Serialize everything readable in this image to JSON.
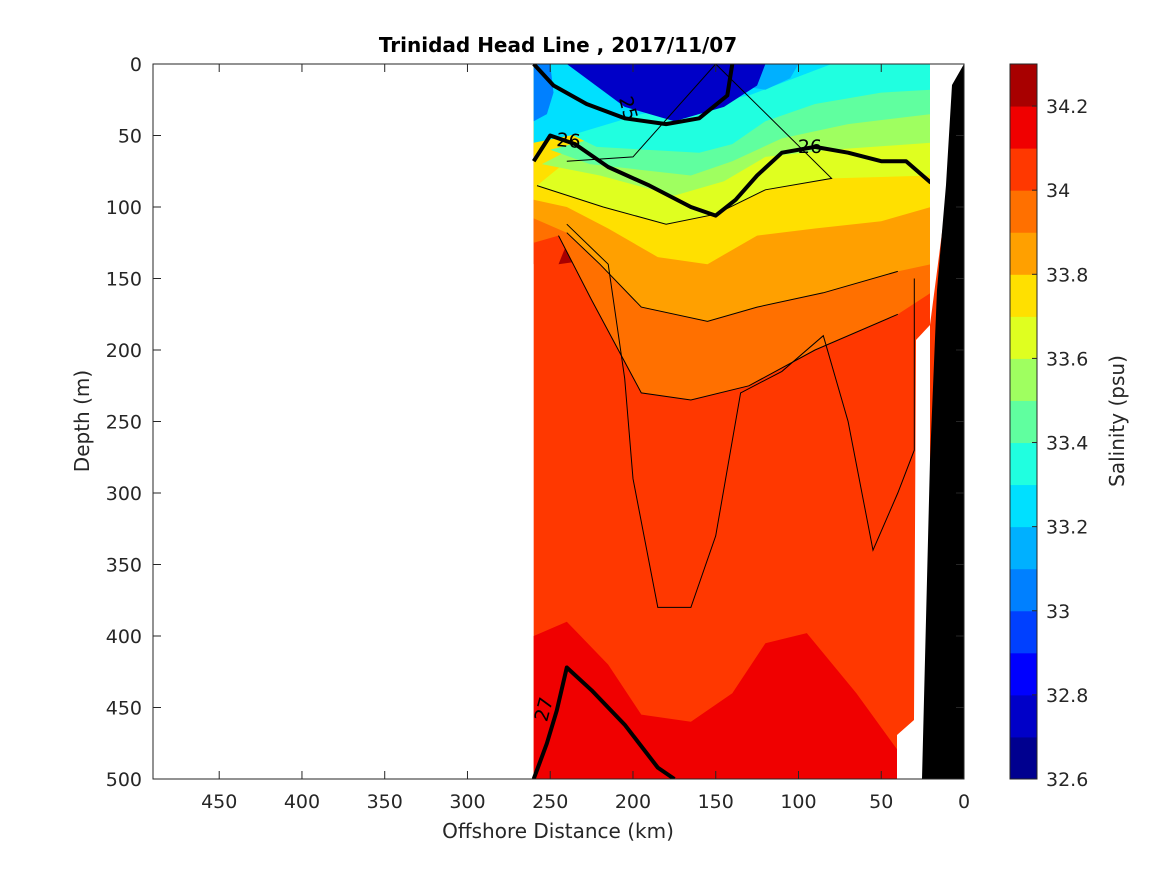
{
  "chart_data": {
    "type": "heatmap",
    "title": "Trinidad Head Line , 2017/11/07",
    "xlabel": "Offshore Distance (km)",
    "ylabel": "Depth (m)",
    "xlim": [
      490,
      0
    ],
    "ylim": [
      500,
      0
    ],
    "x_reversed": true,
    "y_reversed": true,
    "xticks": [
      "450",
      "400",
      "350",
      "300",
      "250",
      "200",
      "150",
      "100",
      "50",
      "0"
    ],
    "xtick_values": [
      450,
      400,
      350,
      300,
      250,
      200,
      150,
      100,
      50,
      0
    ],
    "yticks": [
      "0",
      "50",
      "100",
      "150",
      "200",
      "250",
      "300",
      "350",
      "400",
      "450",
      "500"
    ],
    "ytick_values": [
      0,
      50,
      100,
      150,
      200,
      250,
      300,
      350,
      400,
      450,
      500
    ],
    "data_extent_km": [
      0,
      260
    ],
    "colorbar": {
      "label": "Salinity (psu)",
      "range": [
        32.6,
        34.3
      ],
      "ticks": [
        "32.6",
        "32.8",
        "33",
        "33.2",
        "33.4",
        "33.6",
        "33.8",
        "34",
        "34.2"
      ],
      "tick_values": [
        32.6,
        32.8,
        33.0,
        33.2,
        33.4,
        33.6,
        33.8,
        34.0,
        34.2
      ],
      "levels": [
        32.6,
        32.7,
        32.8,
        32.9,
        33.0,
        33.1,
        33.2,
        33.3,
        33.4,
        33.5,
        33.6,
        33.7,
        33.8,
        33.9,
        34.0,
        34.1,
        34.2,
        34.3
      ],
      "colors": [
        "#00008f",
        "#0000c8",
        "#0000ff",
        "#0040ff",
        "#0080ff",
        "#00b0ff",
        "#00e0ff",
        "#20ffe0",
        "#60ff9f",
        "#9fff60",
        "#dfff20",
        "#ffe000",
        "#ffa000",
        "#ff7000",
        "#ff3800",
        "#f00000",
        "#a80000"
      ]
    },
    "salinity_bands": [
      {
        "level": 32.7,
        "points": [
          [
            240,
            0
          ],
          [
            120,
            0
          ],
          [
            125,
            15
          ],
          [
            145,
            30
          ],
          [
            175,
            40
          ],
          [
            205,
            30
          ]
        ]
      },
      {
        "level": 32.9,
        "points": [
          [
            230,
            0
          ],
          [
            132,
            0
          ],
          [
            140,
            20
          ],
          [
            170,
            32
          ],
          [
            195,
            20
          ]
        ]
      },
      {
        "level": 33.0,
        "points": [
          [
            260,
            0
          ],
          [
            250,
            0
          ],
          [
            248,
            20
          ],
          [
            252,
            35
          ],
          [
            260,
            40
          ]
        ]
      },
      {
        "level": 33.1,
        "points": [
          [
            225,
            0
          ],
          [
            100,
            0
          ],
          [
            105,
            10
          ],
          [
            120,
            18
          ]
        ]
      },
      {
        "level": 33.2,
        "points": [
          [
            260,
            0
          ],
          [
            80,
            0
          ],
          [
            130,
            22
          ],
          [
            195,
            35
          ],
          [
            238,
            50
          ],
          [
            260,
            55
          ]
        ]
      },
      {
        "level": 33.3,
        "points": [
          [
            245,
            45
          ],
          [
            222,
            58
          ],
          [
            160,
            62
          ],
          [
            140,
            56
          ],
          [
            120,
            40
          ],
          [
            90,
            28
          ],
          [
            50,
            20
          ],
          [
            20,
            18
          ],
          [
            20,
            0
          ],
          [
            200,
            0
          ],
          [
            220,
            18
          ]
        ]
      },
      {
        "level": 33.4,
        "points": [
          [
            250,
            60
          ],
          [
            226,
            70
          ],
          [
            165,
            78
          ],
          [
            140,
            68
          ],
          [
            110,
            52
          ],
          [
            70,
            42
          ],
          [
            20,
            35
          ],
          [
            20,
            0
          ],
          [
            90,
            0
          ],
          [
            150,
            30
          ],
          [
            200,
            45
          ]
        ]
      },
      {
        "level": 33.5,
        "points": [
          [
            255,
            70
          ],
          [
            220,
            78
          ],
          [
            175,
            92
          ],
          [
            145,
            82
          ],
          [
            120,
            65
          ],
          [
            80,
            60
          ],
          [
            20,
            55
          ],
          [
            20,
            0
          ],
          [
            120,
            0
          ],
          [
            180,
            50
          ],
          [
            230,
            55
          ]
        ]
      },
      {
        "level": 33.6,
        "points": [
          [
            258,
            85
          ],
          [
            218,
            100
          ],
          [
            180,
            112
          ],
          [
            150,
            105
          ],
          [
            120,
            88
          ],
          [
            80,
            80
          ],
          [
            20,
            78
          ],
          [
            20,
            0
          ],
          [
            150,
            0
          ],
          [
            200,
            65
          ],
          [
            240,
            68
          ]
        ]
      },
      {
        "level": 33.7,
        "points": [
          [
            260,
            95
          ],
          [
            240,
            100
          ],
          [
            215,
            115
          ],
          [
            185,
            135
          ],
          [
            155,
            140
          ],
          [
            125,
            120
          ],
          [
            90,
            115
          ],
          [
            50,
            110
          ],
          [
            20,
            100
          ],
          [
            20,
            0
          ],
          [
            260,
            0
          ]
        ]
      },
      {
        "level": 33.8,
        "points": [
          [
            260,
            108
          ],
          [
            240,
            118
          ],
          [
            220,
            140
          ],
          [
            195,
            170
          ],
          [
            155,
            180
          ],
          [
            125,
            170
          ],
          [
            85,
            160
          ],
          [
            40,
            145
          ],
          [
            20,
            140
          ],
          [
            20,
            0
          ],
          [
            260,
            0
          ]
        ]
      },
      {
        "level": 33.9,
        "points": [
          [
            260,
            125
          ],
          [
            245,
            120
          ],
          [
            225,
            165
          ],
          [
            195,
            230
          ],
          [
            165,
            235
          ],
          [
            130,
            225
          ],
          [
            90,
            200
          ],
          [
            40,
            175
          ],
          [
            20,
            160
          ],
          [
            20,
            0
          ],
          [
            260,
            0
          ]
        ]
      },
      {
        "level": 34.0,
        "points": [
          [
            260,
            140
          ],
          [
            240,
            112
          ],
          [
            215,
            140
          ],
          [
            205,
            220
          ],
          [
            200,
            290
          ],
          [
            185,
            380
          ],
          [
            165,
            380
          ],
          [
            150,
            330
          ],
          [
            135,
            230
          ],
          [
            110,
            215
          ],
          [
            85,
            190
          ],
          [
            70,
            250
          ],
          [
            55,
            340
          ],
          [
            40,
            300
          ],
          [
            30,
            270
          ],
          [
            30,
            150
          ],
          [
            20,
            130
          ],
          [
            20,
            0
          ],
          [
            260,
            0
          ]
        ]
      },
      {
        "level": 34.1,
        "points": [
          [
            260,
            400
          ],
          [
            240,
            390
          ],
          [
            215,
            420
          ],
          [
            195,
            455
          ],
          [
            165,
            460
          ],
          [
            140,
            440
          ],
          [
            120,
            405
          ],
          [
            95,
            398
          ],
          [
            65,
            440
          ],
          [
            40,
            480
          ],
          [
            38,
            500
          ],
          [
            260,
            500
          ]
        ]
      },
      {
        "level": 34.2,
        "points": [
          [
            245,
            140
          ],
          [
            238,
            120
          ],
          [
            232,
            138
          ]
        ]
      }
    ],
    "density_contours": [
      {
        "label": "25",
        "bold": true,
        "points": [
          [
            260,
            0
          ],
          [
            248,
            15
          ],
          [
            228,
            28
          ],
          [
            205,
            38
          ],
          [
            180,
            42
          ],
          [
            160,
            38
          ],
          [
            143,
            22
          ],
          [
            140,
            0
          ]
        ]
      },
      {
        "label": "26",
        "bold": true,
        "points": [
          [
            260,
            68
          ],
          [
            250,
            50
          ],
          [
            235,
            56
          ],
          [
            215,
            72
          ],
          [
            190,
            85
          ],
          [
            165,
            100
          ],
          [
            150,
            106
          ],
          [
            138,
            95
          ],
          [
            125,
            78
          ],
          [
            110,
            62
          ],
          [
            90,
            58
          ],
          [
            70,
            62
          ],
          [
            50,
            68
          ],
          [
            35,
            68
          ],
          [
            20,
            83
          ]
        ]
      },
      {
        "label": "27",
        "bold": true,
        "points": [
          [
            260,
            500
          ],
          [
            252,
            475
          ],
          [
            246,
            452
          ],
          [
            240,
            422
          ],
          [
            225,
            438
          ],
          [
            205,
            462
          ],
          [
            185,
            492
          ],
          [
            175,
            500
          ]
        ]
      }
    ]
  }
}
